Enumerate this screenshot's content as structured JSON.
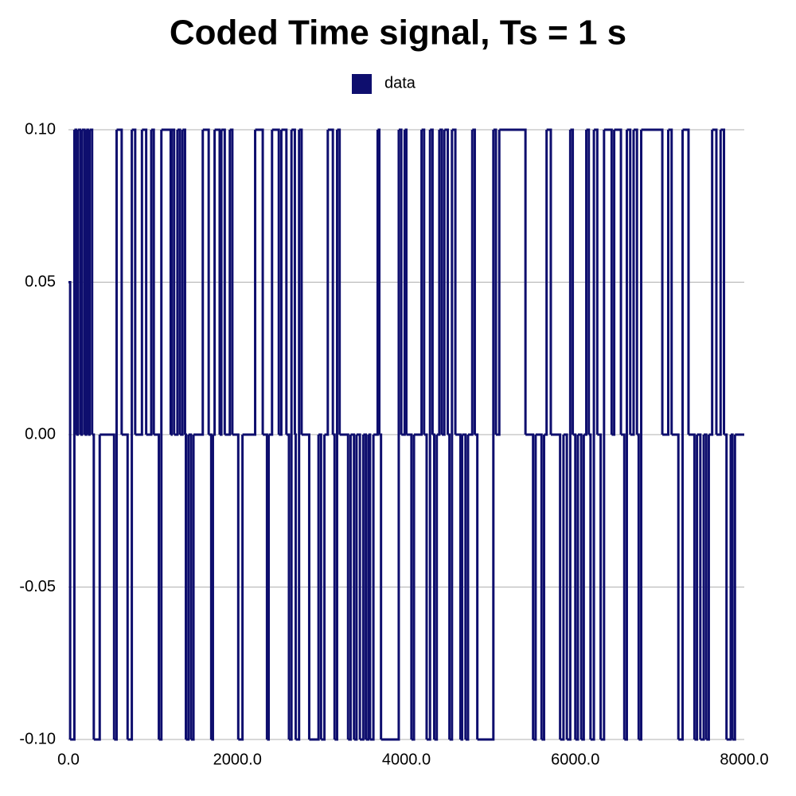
{
  "chart_data": {
    "type": "step",
    "title": "Coded Time signal, Ts = 1 s",
    "series": [
      {
        "name": "data",
        "color": "#0e0e6e",
        "x": [
          0,
          20,
          70,
          90,
          110,
          140,
          160,
          190,
          210,
          230,
          250,
          280,
          300,
          370,
          540,
          570,
          630,
          700,
          750,
          790,
          870,
          920,
          980,
          1010,
          1070,
          1100,
          1210,
          1220,
          1250,
          1290,
          1320,
          1350,
          1380,
          1390,
          1420,
          1450,
          1480,
          1590,
          1660,
          1690,
          1710,
          1730,
          1790,
          1810,
          1850,
          1910,
          1940,
          2010,
          2060,
          2210,
          2300,
          2350,
          2370,
          2410,
          2490,
          2520,
          2580,
          2610,
          2640,
          2680,
          2690,
          2730,
          2760,
          2850,
          2960,
          2990,
          3030,
          3070,
          3130,
          3150,
          3180,
          3210,
          3310,
          3340,
          3380,
          3410,
          3450,
          3490,
          3520,
          3550,
          3570,
          3610,
          3660,
          3680,
          3700,
          3910,
          3940,
          3980,
          4000,
          4060,
          4090,
          4180,
          4210,
          4240,
          4280,
          4310,
          4330,
          4360,
          4390,
          4420,
          4450,
          4490,
          4510,
          4540,
          4580,
          4640,
          4660,
          4700,
          4730,
          4780,
          4810,
          4840,
          5030,
          5060,
          5100,
          5410,
          5500,
          5530,
          5600,
          5630,
          5660,
          5710,
          5820,
          5860,
          5900,
          5940,
          5970,
          6000,
          6030,
          6070,
          6100,
          6130,
          6160,
          6180,
          6220,
          6260,
          6300,
          6340,
          6430,
          6460,
          6540,
          6580,
          6610,
          6650,
          6690,
          6730,
          6750,
          6780,
          7030,
          7100,
          7140,
          7220,
          7270,
          7340,
          7410,
          7440,
          7480,
          7520,
          7550,
          7580,
          7620,
          7670,
          7720,
          7760,
          7790,
          7840,
          7860,
          7890,
          8000
        ],
        "values": [
          0.05,
          -0.1,
          0.1,
          0,
          0.1,
          0,
          0.1,
          0,
          0.1,
          0,
          0.1,
          0,
          -0.1,
          0,
          -0.1,
          0.1,
          0,
          -0.1,
          0.1,
          0,
          0.1,
          0,
          0.1,
          0,
          -0.1,
          0.1,
          0,
          0.1,
          0,
          0.1,
          0,
          0.1,
          0,
          -0.1,
          0,
          -0.1,
          0,
          0.1,
          0,
          -0.1,
          0,
          0.1,
          0,
          0.1,
          0,
          0.1,
          0,
          -0.1,
          0,
          0.1,
          0,
          -0.1,
          0,
          0.1,
          0,
          0.1,
          0,
          -0.1,
          0.1,
          0,
          -0.1,
          0.1,
          0,
          -0.1,
          0,
          -0.1,
          0,
          0.1,
          0,
          -0.1,
          0.1,
          0,
          -0.1,
          0,
          -0.1,
          0,
          -0.1,
          0,
          -0.1,
          0,
          -0.1,
          0,
          0.1,
          0,
          -0.1,
          0.1,
          0,
          0.1,
          0,
          -0.1,
          0,
          0.1,
          0,
          -0.1,
          0.1,
          0,
          -0.1,
          0,
          0.1,
          0,
          0.1,
          0,
          -0.1,
          0.1,
          0,
          -0.1,
          0,
          -0.1,
          0,
          0.1,
          0,
          -0.1,
          0.1,
          0,
          0.1,
          0,
          -0.1,
          0,
          -0.1,
          0,
          0.1,
          0,
          -0.1,
          0,
          -0.1,
          0.1,
          0,
          -0.1,
          0,
          -0.1,
          0,
          0.1,
          0,
          -0.1,
          0.1,
          0,
          -0.1,
          0.1,
          0,
          0.1,
          0,
          -0.1,
          0.1,
          0,
          0.1,
          0,
          -0.1,
          0.1,
          0,
          0.1,
          0,
          -0.1,
          0.1,
          0,
          -0.1,
          0,
          -0.1,
          0,
          -0.1,
          0,
          0.1,
          0,
          0.1,
          0,
          -0.1,
          0,
          -0.1,
          0,
          0
        ]
      }
    ],
    "xlim": [
      0,
      8000
    ],
    "xticks": [
      {
        "value": 0,
        "label": "0.0"
      },
      {
        "value": 2000,
        "label": "2000.0"
      },
      {
        "value": 4000,
        "label": "4000.0"
      },
      {
        "value": 6000,
        "label": "6000.0"
      },
      {
        "value": 8000,
        "label": "8000.0"
      }
    ],
    "ylim": [
      -0.1,
      0.1
    ],
    "yticks": [
      {
        "value": -0.1,
        "label": "-0.10"
      },
      {
        "value": -0.05,
        "label": "-0.05"
      },
      {
        "value": 0,
        "label": "0.00"
      },
      {
        "value": 0.05,
        "label": "0.05"
      },
      {
        "value": 0.1,
        "label": "0.10"
      }
    ],
    "grid": true
  }
}
